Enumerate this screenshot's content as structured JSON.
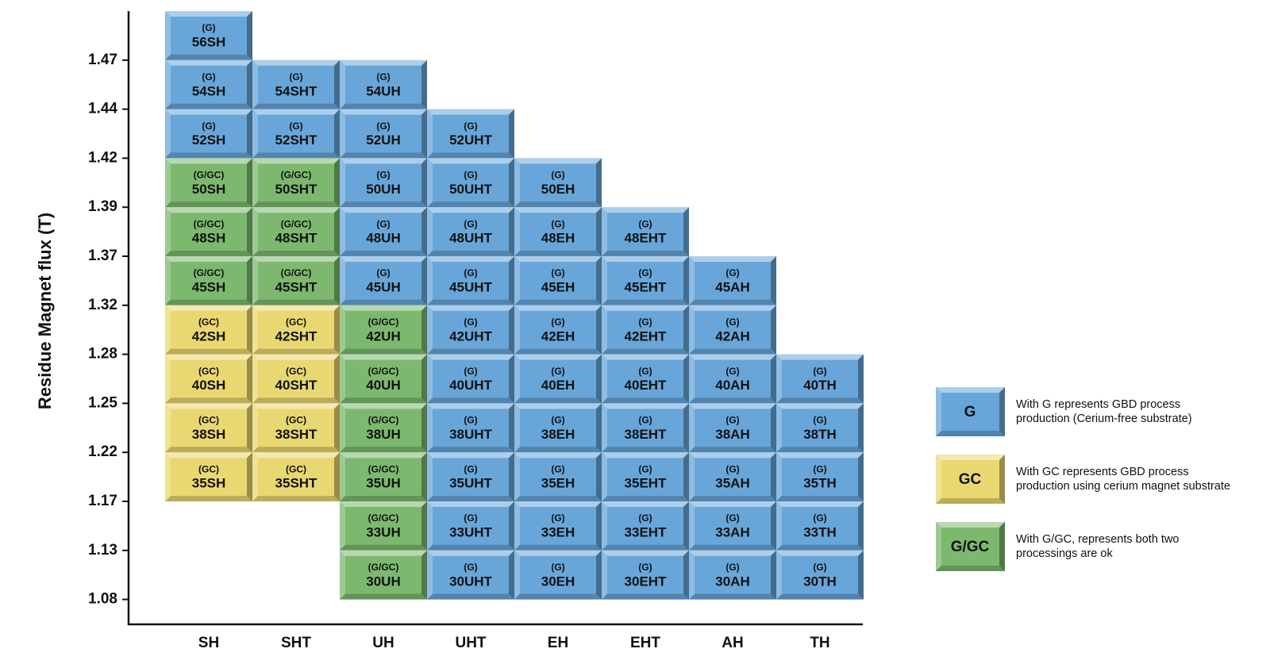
{
  "chart_data": {
    "type": "grade-grid",
    "y_axis_label": "Residue Magnet flux (T)",
    "row_labels": [
      1.47,
      1.44,
      1.42,
      1.39,
      1.37,
      1.32,
      1.28,
      1.25,
      1.22,
      1.17,
      1.13,
      1.08
    ],
    "columns": [
      {
        "name": "SH",
        "cells": [
          {
            "process": "(G)",
            "grade": "56SH"
          },
          {
            "process": "(G)",
            "grade": "54SH"
          },
          {
            "process": "(G)",
            "grade": "52SH"
          },
          {
            "process": "(G/GC)",
            "grade": "50SH"
          },
          {
            "process": "(G/GC)",
            "grade": "48SH"
          },
          {
            "process": "(G/GC)",
            "grade": "45SH"
          },
          {
            "process": "(GC)",
            "grade": "42SH"
          },
          {
            "process": "(GC)",
            "grade": "40SH"
          },
          {
            "process": "(GC)",
            "grade": "38SH"
          },
          {
            "process": "(GC)",
            "grade": "35SH"
          },
          null,
          null
        ]
      },
      {
        "name": "SHT",
        "cells": [
          null,
          {
            "process": "(G)",
            "grade": "54SHT"
          },
          {
            "process": "(G)",
            "grade": "52SHT"
          },
          {
            "process": "(G/GC)",
            "grade": "50SHT"
          },
          {
            "process": "(G/GC)",
            "grade": "48SHT"
          },
          {
            "process": "(G/GC)",
            "grade": "45SHT"
          },
          {
            "process": "(GC)",
            "grade": "42SHT"
          },
          {
            "process": "(GC)",
            "grade": "40SHT"
          },
          {
            "process": "(GC)",
            "grade": "38SHT"
          },
          {
            "process": "(GC)",
            "grade": "35SHT"
          },
          null,
          null
        ]
      },
      {
        "name": "UH",
        "cells": [
          null,
          {
            "process": "(G)",
            "grade": "54UH"
          },
          {
            "process": "(G)",
            "grade": "52UH"
          },
          {
            "process": "(G)",
            "grade": "50UH"
          },
          {
            "process": "(G)",
            "grade": "48UH"
          },
          {
            "process": "(G)",
            "grade": "45UH"
          },
          {
            "process": "(G/GC)",
            "grade": "42UH"
          },
          {
            "process": "(G/GC)",
            "grade": "40UH"
          },
          {
            "process": "(G/GC)",
            "grade": "38UH"
          },
          {
            "process": "(G/GC)",
            "grade": "35UH"
          },
          {
            "process": "(G/GC)",
            "grade": "33UH"
          },
          {
            "process": "(G/GC)",
            "grade": "30UH"
          }
        ]
      },
      {
        "name": "UHT",
        "cells": [
          null,
          null,
          {
            "process": "(G)",
            "grade": "52UHT"
          },
          {
            "process": "(G)",
            "grade": "50UHT"
          },
          {
            "process": "(G)",
            "grade": "48UHT"
          },
          {
            "process": "(G)",
            "grade": "45UHT"
          },
          {
            "process": "(G)",
            "grade": "42UHT"
          },
          {
            "process": "(G)",
            "grade": "40UHT"
          },
          {
            "process": "(G)",
            "grade": "38UHT"
          },
          {
            "process": "(G)",
            "grade": "35UHT"
          },
          {
            "process": "(G)",
            "grade": "33UHT"
          },
          {
            "process": "(G)",
            "grade": "30UHT"
          }
        ]
      },
      {
        "name": "EH",
        "cells": [
          null,
          null,
          null,
          {
            "process": "(G)",
            "grade": "50EH"
          },
          {
            "process": "(G)",
            "grade": "48EH"
          },
          {
            "process": "(G)",
            "grade": "45EH"
          },
          {
            "process": "(G)",
            "grade": "42EH"
          },
          {
            "process": "(G)",
            "grade": "40EH"
          },
          {
            "process": "(G)",
            "grade": "38EH"
          },
          {
            "process": "(G)",
            "grade": "35EH"
          },
          {
            "process": "(G)",
            "grade": "33EH"
          },
          {
            "process": "(G)",
            "grade": "30EH"
          }
        ]
      },
      {
        "name": "EHT",
        "cells": [
          null,
          null,
          null,
          null,
          {
            "process": "(G)",
            "grade": "48EHT"
          },
          {
            "process": "(G)",
            "grade": "45EHT"
          },
          {
            "process": "(G)",
            "grade": "42EHT"
          },
          {
            "process": "(G)",
            "grade": "40EHT"
          },
          {
            "process": "(G)",
            "grade": "38EHT"
          },
          {
            "process": "(G)",
            "grade": "35EHT"
          },
          {
            "process": "(G)",
            "grade": "33EHT"
          },
          {
            "process": "(G)",
            "grade": "30EHT"
          }
        ]
      },
      {
        "name": "AH",
        "cells": [
          null,
          null,
          null,
          null,
          null,
          {
            "process": "(G)",
            "grade": "45AH"
          },
          {
            "process": "(G)",
            "grade": "42AH"
          },
          {
            "process": "(G)",
            "grade": "40AH"
          },
          {
            "process": "(G)",
            "grade": "38AH"
          },
          {
            "process": "(G)",
            "grade": "35AH"
          },
          {
            "process": "(G)",
            "grade": "33AH"
          },
          {
            "process": "(G)",
            "grade": "30AH"
          }
        ]
      },
      {
        "name": "TH",
        "cells": [
          null,
          null,
          null,
          null,
          null,
          null,
          null,
          {
            "process": "(G)",
            "grade": "40TH"
          },
          {
            "process": "(G)",
            "grade": "38TH"
          },
          {
            "process": "(G)",
            "grade": "35TH"
          },
          {
            "process": "(G)",
            "grade": "33TH"
          },
          {
            "process": "(G)",
            "grade": "30TH"
          }
        ]
      }
    ],
    "legend": [
      {
        "label": "G",
        "color": "#68a6d9",
        "text": [
          "With G represents GBD process",
          "production (Cerium-free substrate)"
        ]
      },
      {
        "label": "GC",
        "color": "#e9d871",
        "text": [
          "With GC represents GBD process",
          "production using cerium magnet substrate"
        ]
      },
      {
        "label": "G/GC",
        "color": "#7cb96f",
        "text": [
          "With G/GC, represents both two",
          "processings are ok"
        ]
      }
    ]
  }
}
